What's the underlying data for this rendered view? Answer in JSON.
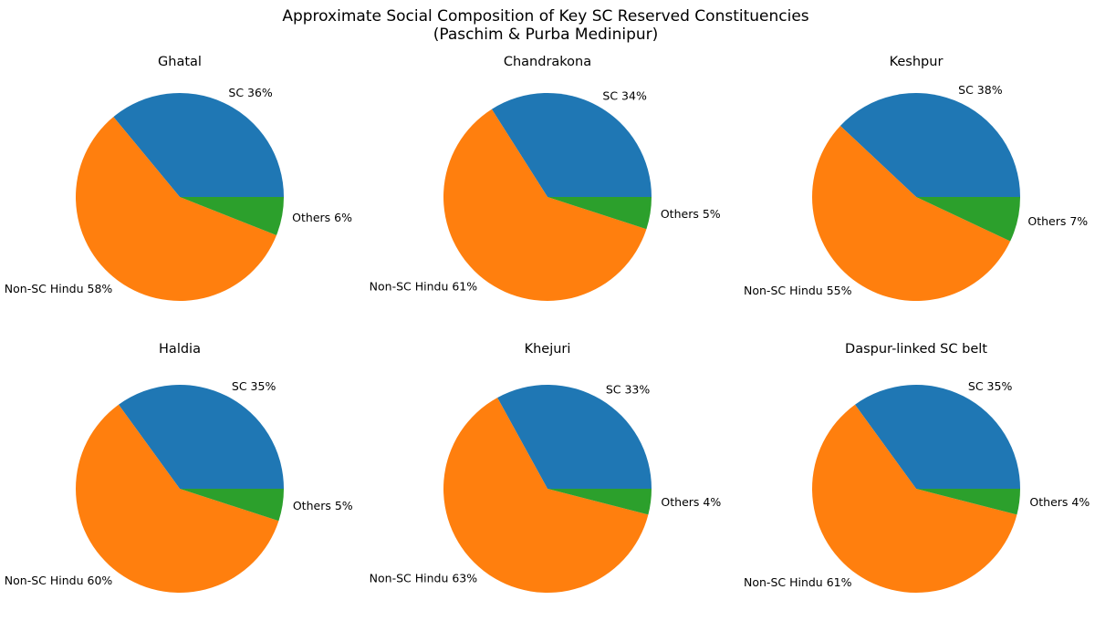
{
  "figure": {
    "title_lines": [
      "Approximate Social Composition of Key SC Reserved Constituencies",
      "(Paschim & Purba Medinipur)"
    ]
  },
  "series_colors": {
    "SC": "#1f77b4",
    "Non-SC Hindu": "#ff7f0e",
    "Others": "#2ca02c"
  },
  "chart_data": [
    {
      "type": "pie",
      "title": "Ghatal",
      "labels": [
        "SC",
        "Non-SC Hindu",
        "Others"
      ],
      "values": [
        36,
        58,
        6
      ],
      "start_angle_deg": 0,
      "direction": "counterclockwise",
      "legend": "none"
    },
    {
      "type": "pie",
      "title": "Chandrakona",
      "labels": [
        "SC",
        "Non-SC Hindu",
        "Others"
      ],
      "values": [
        34,
        61,
        5
      ],
      "start_angle_deg": 0,
      "direction": "counterclockwise",
      "legend": "none"
    },
    {
      "type": "pie",
      "title": "Keshpur",
      "labels": [
        "SC",
        "Non-SC Hindu",
        "Others"
      ],
      "values": [
        38,
        55,
        7
      ],
      "start_angle_deg": 0,
      "direction": "counterclockwise",
      "legend": "none"
    },
    {
      "type": "pie",
      "title": "Haldia",
      "labels": [
        "SC",
        "Non-SC Hindu",
        "Others"
      ],
      "values": [
        35,
        60,
        5
      ],
      "start_angle_deg": 0,
      "direction": "counterclockwise",
      "legend": "none"
    },
    {
      "type": "pie",
      "title": "Khejuri",
      "labels": [
        "SC",
        "Non-SC Hindu",
        "Others"
      ],
      "values": [
        33,
        63,
        4
      ],
      "start_angle_deg": 0,
      "direction": "counterclockwise",
      "legend": "none"
    },
    {
      "type": "pie",
      "title": "Daspur-linked SC belt",
      "labels": [
        "SC",
        "Non-SC Hindu",
        "Others"
      ],
      "values": [
        35,
        61,
        4
      ],
      "start_angle_deg": 0,
      "direction": "counterclockwise",
      "legend": "none"
    }
  ]
}
